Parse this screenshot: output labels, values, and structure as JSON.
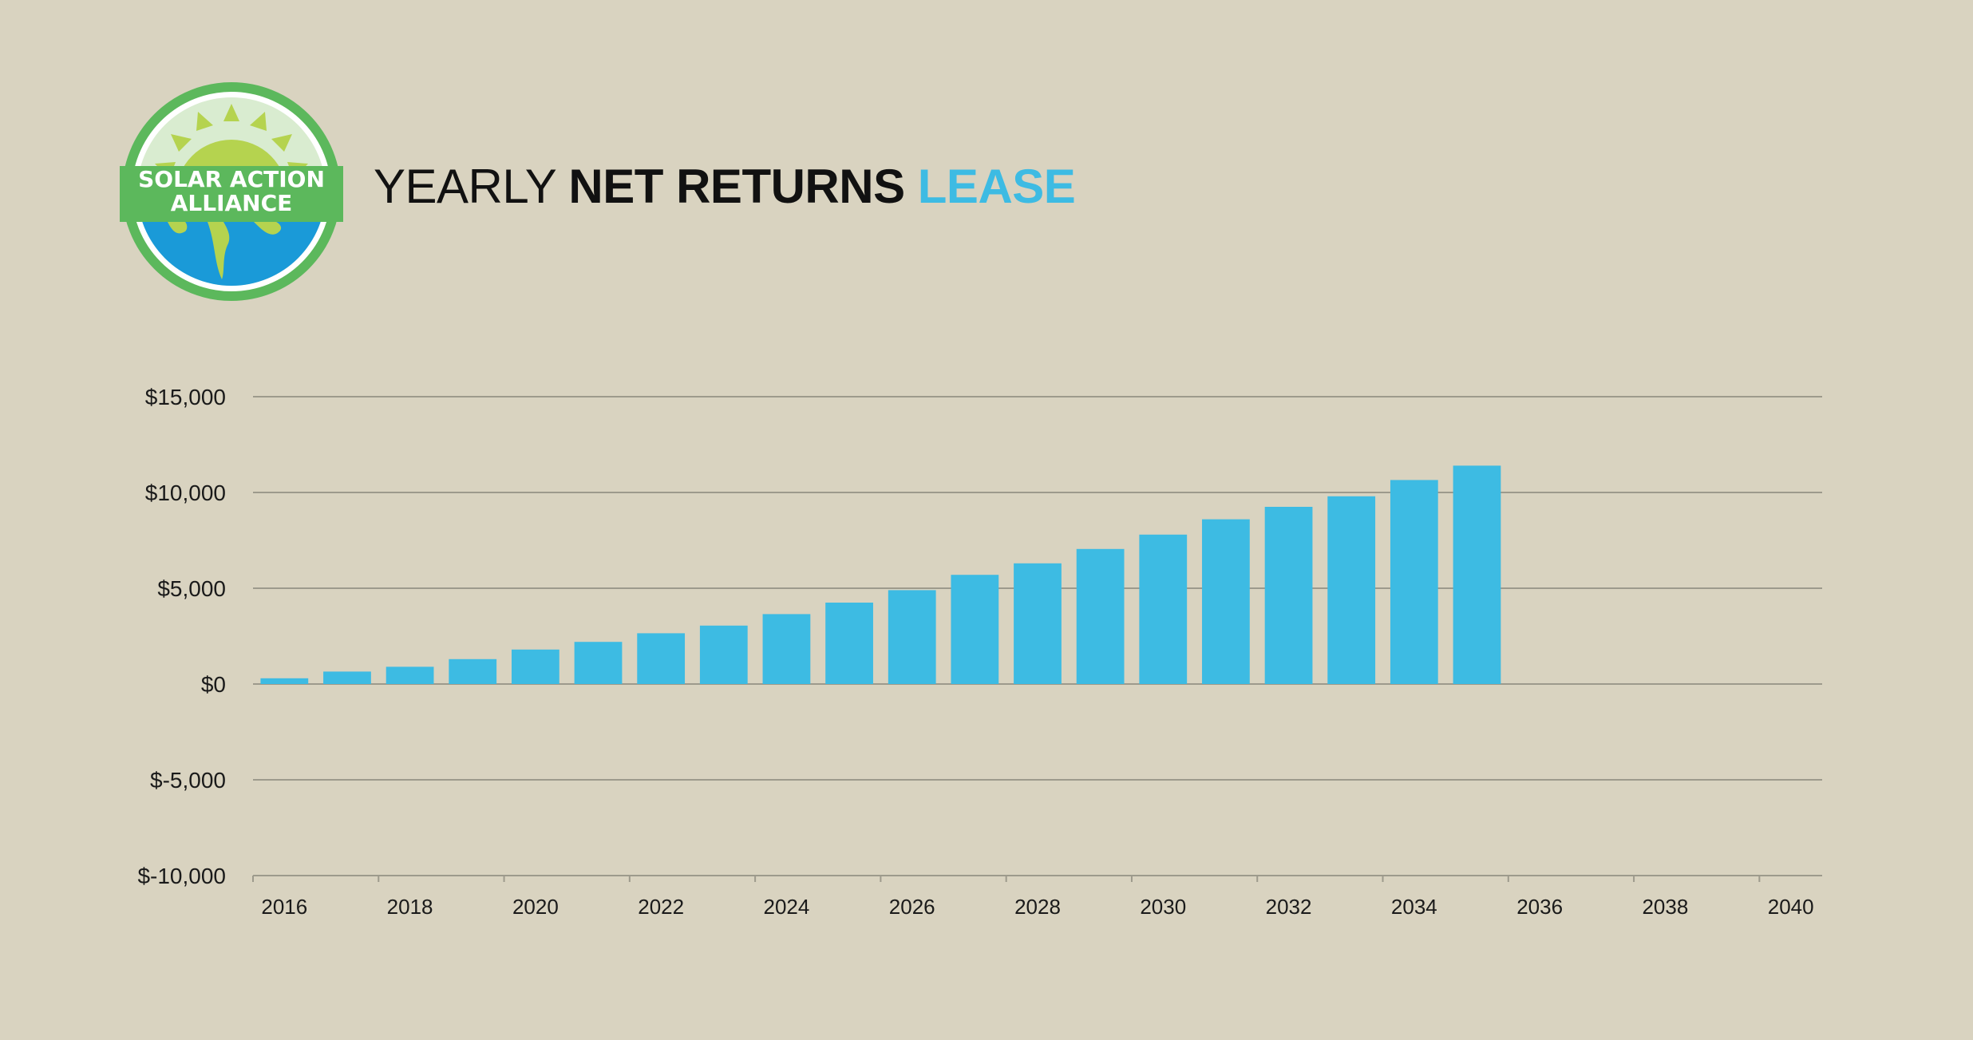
{
  "logo": {
    "line1": "SOLAR ACTION",
    "line2": "ALLIANCE"
  },
  "title": {
    "part1": "YEARLY",
    "part2": "NET RETURNS",
    "part3": "LEASE"
  },
  "colors": {
    "background": "#d9d3c0",
    "bar": "#3dbbe3",
    "accent": "#3dbbe3",
    "grid": "#9d9a8c",
    "logo_green": "#5cb85c",
    "logo_lime": "#b5d34f",
    "logo_blue": "#1a9ad8"
  },
  "chart_data": {
    "type": "bar",
    "categories": [
      "2016",
      "2017",
      "2018",
      "2019",
      "2020",
      "2021",
      "2022",
      "2023",
      "2024",
      "2025",
      "2026",
      "2027",
      "2028",
      "2029",
      "2030",
      "2031",
      "2032",
      "2033",
      "2034",
      "2035"
    ],
    "values": [
      300,
      650,
      900,
      1300,
      1800,
      2200,
      2650,
      3050,
      3650,
      4250,
      4900,
      5700,
      6300,
      7050,
      7800,
      8600,
      9250,
      9800,
      10650,
      11400
    ],
    "x_ticks": [
      "2016",
      "2018",
      "2020",
      "2022",
      "2024",
      "2026",
      "2028",
      "2030",
      "2032",
      "2034",
      "2036",
      "2038",
      "2040"
    ],
    "y_ticks": [
      15000,
      10000,
      5000,
      0,
      -5000,
      -10000
    ],
    "y_tick_labels": [
      "$15,000",
      "$10,000",
      "$5,000",
      "$0",
      "$-5,000",
      "$-10,000"
    ],
    "ylim": [
      -10000,
      15000
    ],
    "xlim": [
      2016,
      2041
    ],
    "title": "YEARLY NET RETURNS LEASE",
    "xlabel": "",
    "ylabel": "",
    "grid": true
  }
}
